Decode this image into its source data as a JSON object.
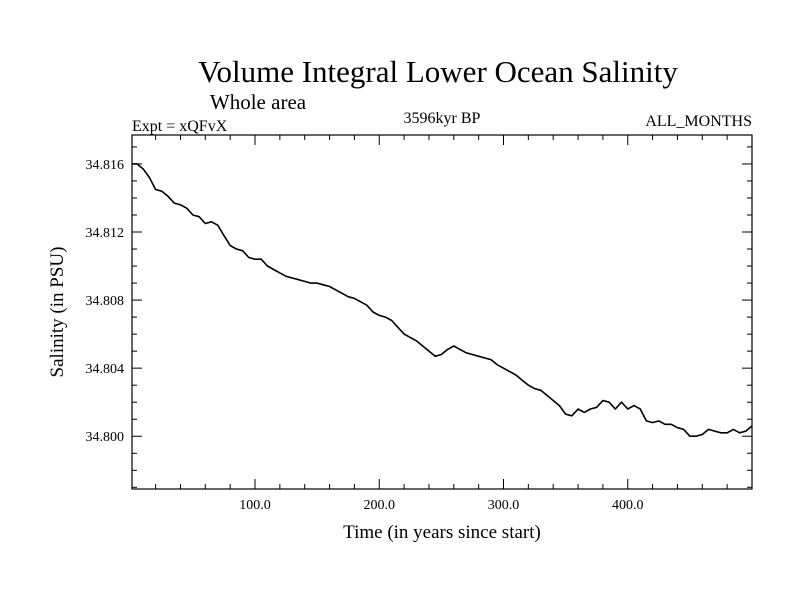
{
  "chart_data": {
    "type": "line",
    "title": "Volume Integral Lower Ocean Salinity",
    "subtitle": "Whole area",
    "experiment_label": "Expt = xQFvX",
    "period_label": "3596kyr BP",
    "months_label": "ALL_MONTHS",
    "xlabel": "Time (in years since start)",
    "ylabel": "Salinity (in PSU)",
    "xlim": [
      1,
      500
    ],
    "ylim": [
      34.7969,
      34.8177
    ],
    "x_ticks": [
      100,
      200,
      300,
      400
    ],
    "x_tick_labels": [
      "100.0",
      "200.0",
      "300.0",
      "400.0"
    ],
    "y_ticks": [
      34.8,
      34.804,
      34.808,
      34.812,
      34.816
    ],
    "y_tick_labels": [
      "34.800",
      "34.804",
      "34.808",
      "34.812",
      "34.816"
    ],
    "grid": false,
    "series": [
      {
        "name": "Salinity",
        "x": [
          1,
          5,
          10,
          15,
          20,
          25,
          30,
          35,
          40,
          45,
          50,
          55,
          60,
          65,
          70,
          75,
          80,
          85,
          90,
          95,
          100,
          105,
          110,
          115,
          120,
          125,
          130,
          135,
          140,
          145,
          150,
          155,
          160,
          165,
          170,
          175,
          180,
          185,
          190,
          195,
          200,
          205,
          210,
          215,
          220,
          225,
          230,
          235,
          240,
          245,
          250,
          255,
          260,
          265,
          270,
          275,
          280,
          285,
          290,
          295,
          300,
          305,
          310,
          315,
          320,
          325,
          330,
          335,
          340,
          345,
          350,
          355,
          360,
          365,
          370,
          375,
          380,
          385,
          390,
          395,
          400,
          405,
          410,
          415,
          420,
          425,
          430,
          435,
          440,
          445,
          450,
          455,
          460,
          465,
          470,
          475,
          480,
          485,
          490,
          495,
          500
        ],
        "values": [
          34.816,
          34.816,
          34.8157,
          34.8152,
          34.8145,
          34.8144,
          34.8141,
          34.8137,
          34.8136,
          34.8134,
          34.813,
          34.8129,
          34.8125,
          34.8126,
          34.8124,
          34.8118,
          34.8112,
          34.811,
          34.8109,
          34.8105,
          34.8104,
          34.8104,
          34.81,
          34.8098,
          34.8096,
          34.8094,
          34.8093,
          34.8092,
          34.8091,
          34.809,
          34.809,
          34.8089,
          34.8088,
          34.8086,
          34.8084,
          34.8082,
          34.8081,
          34.8079,
          34.8077,
          34.8073,
          34.8071,
          34.807,
          34.8068,
          34.8064,
          34.806,
          34.8058,
          34.8056,
          34.8053,
          34.805,
          34.8047,
          34.8048,
          34.8051,
          34.8053,
          34.8051,
          34.8049,
          34.8048,
          34.8047,
          34.8046,
          34.8045,
          34.8042,
          34.804,
          34.8038,
          34.8036,
          34.8033,
          34.803,
          34.8028,
          34.8027,
          34.8024,
          34.8021,
          34.8018,
          34.8013,
          34.8012,
          34.8016,
          34.8014,
          34.8016,
          34.8017,
          34.8021,
          34.802,
          34.8016,
          34.802,
          34.8016,
          34.8018,
          34.8016,
          34.8009,
          34.8008,
          34.8009,
          34.8007,
          34.8007,
          34.8005,
          34.8004,
          34.8,
          34.8,
          34.8001,
          34.8004,
          34.8003,
          34.8002,
          34.8002,
          34.8004,
          34.8002,
          34.8003,
          34.8006
        ]
      }
    ]
  }
}
